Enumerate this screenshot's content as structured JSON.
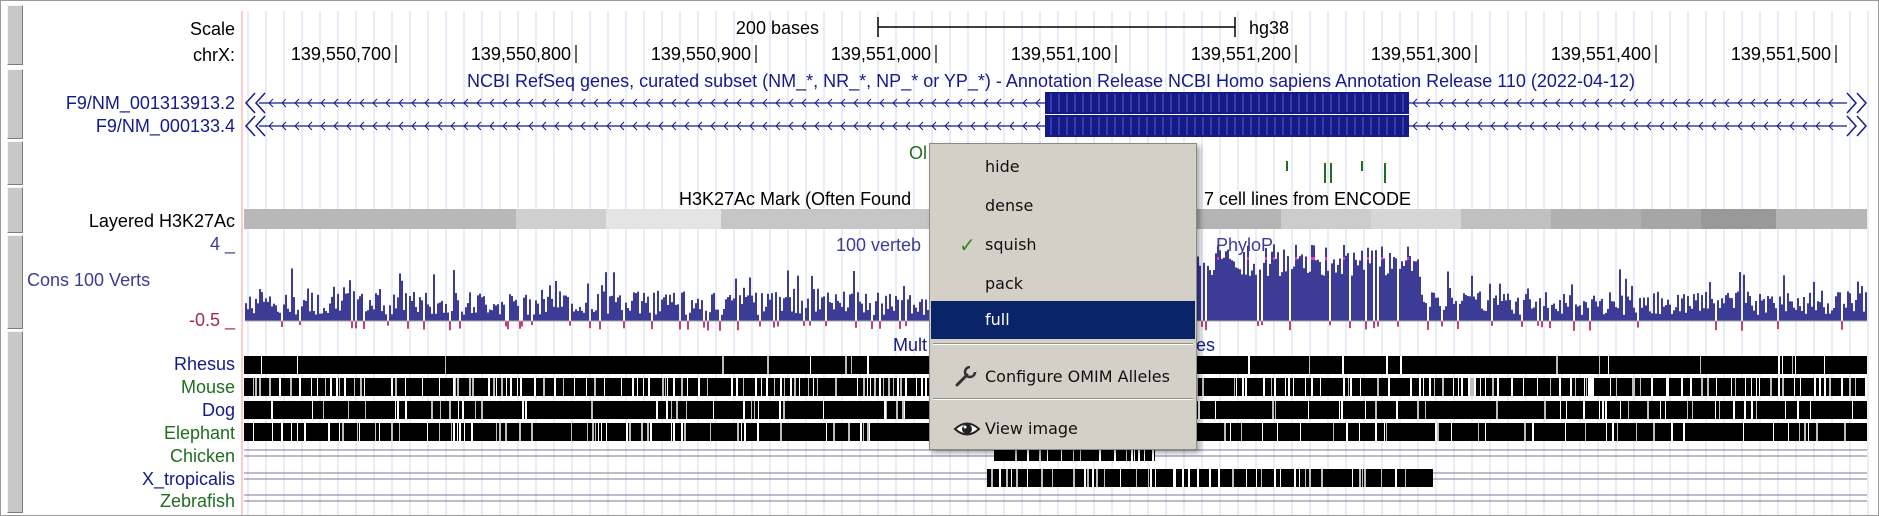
{
  "ruler": {
    "scale_label": "Scale",
    "scale_bar_label": "200 bases",
    "assembly": "hg38",
    "chrom_label": "chrX:",
    "ticks": [
      "139,550,700",
      "139,550,800",
      "139,550,900",
      "139,551,000",
      "139,551,100",
      "139,551,200",
      "139,551,300",
      "139,551,400",
      "139,551,500"
    ]
  },
  "refseq": {
    "title": "NCBI RefSeq genes, curated subset (NM_*, NR_*, NP_* or YP_*) - Annotation Release NCBI Homo sapiens Annotation Release 110 (2022-04-12)",
    "transcripts": [
      "F9/NM_001313913.2",
      "F9/NM_000133.4"
    ]
  },
  "omim": {
    "title_visible": "Ol"
  },
  "h3k27ac": {
    "title_left": "H3K27Ac Mark (Often Found",
    "title_right": "7 cell lines from ENCODE",
    "label": "Layered H3K27Ac"
  },
  "cons": {
    "title_left": "100 verteb",
    "title_right": "PhyloP",
    "label": "Cons 100 Verts",
    "ymax": "4 _",
    "ymin": "-0.5 _"
  },
  "multiz": {
    "title_left": "Mult",
    "title_right": "es",
    "species": [
      "Rhesus",
      "Mouse",
      "Dog",
      "Elephant",
      "Chicken",
      "X_tropicalis",
      "Zebrafish"
    ]
  },
  "context_menu": {
    "items": [
      "hide",
      "dense",
      "squish",
      "pack",
      "full"
    ],
    "checked": "squish",
    "highlighted": "full",
    "configure_label": "Configure OMIM Alleles",
    "view_image_label": "View image"
  },
  "colors": {
    "gene": "#141a8a",
    "cons_pos": "#3c3c96",
    "cons_neg": "#c83c78",
    "menu_bg": "#d4d0c8",
    "menu_highlight": "#0a246a",
    "label_blue": "#141a8a",
    "label_green": "#1e6e1e",
    "check_green": "#2a8a2a"
  }
}
